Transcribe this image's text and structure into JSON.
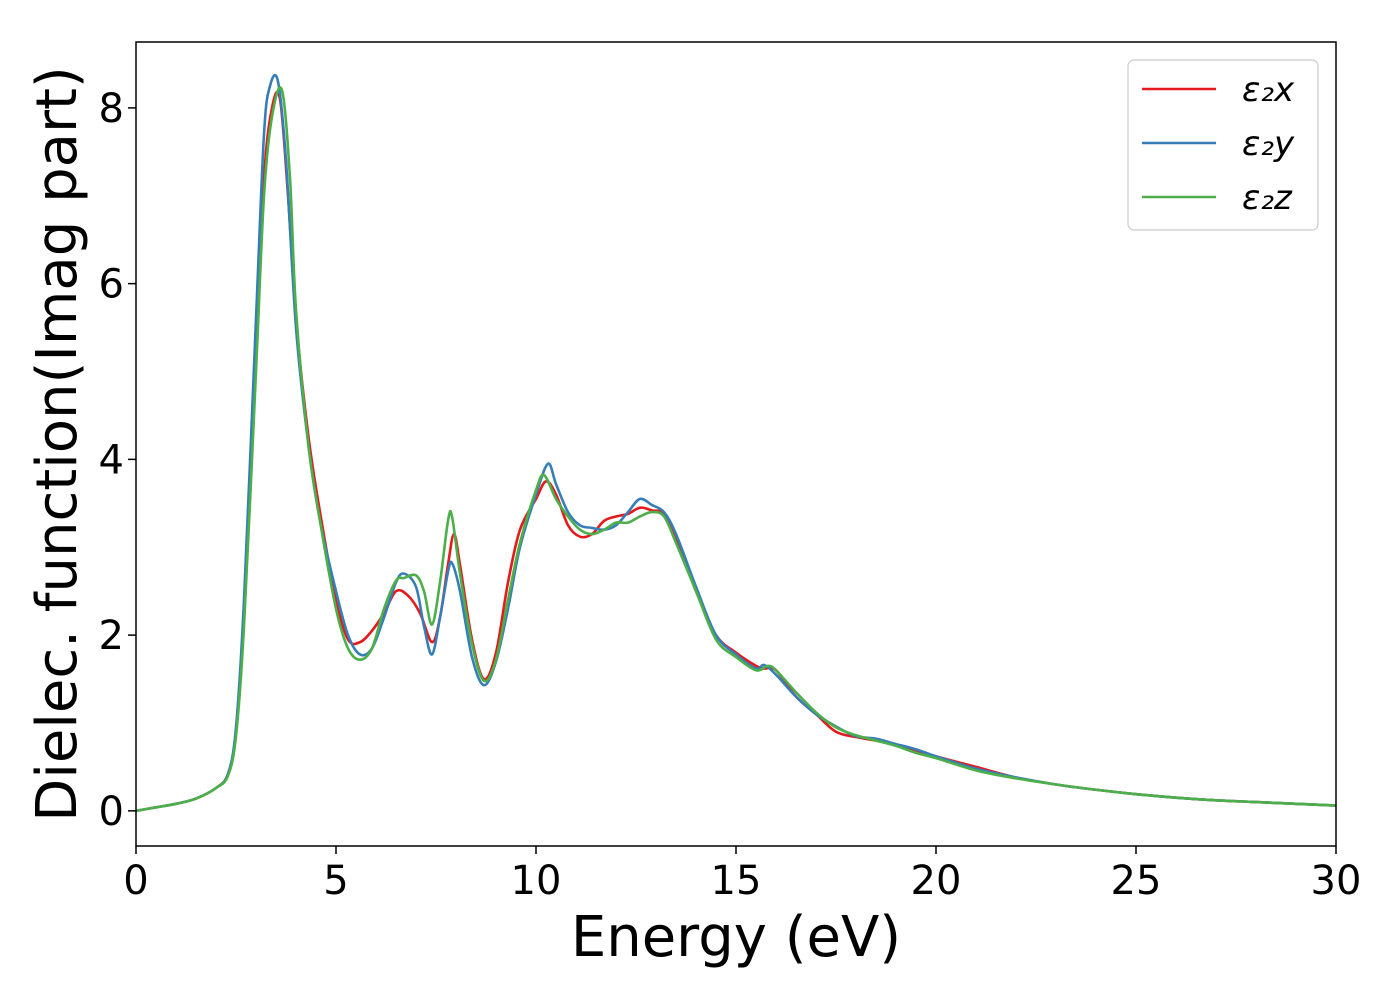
{
  "chart_data": {
    "type": "line",
    "title": "",
    "xlabel": "Energy (eV)",
    "ylabel": "Dielec. function(Imag part)",
    "xlim": [
      0,
      30
    ],
    "ylim": [
      -0.4,
      8.75
    ],
    "xticks": [
      0,
      5,
      10,
      15,
      20,
      25,
      30
    ],
    "yticks": [
      0,
      2,
      4,
      6,
      8
    ],
    "grid": false,
    "legend_position": "top-right",
    "series": [
      {
        "name": "ε₂x",
        "color": "#e41a1c",
        "x": [
          0,
          0.5,
          1,
          1.5,
          2,
          2.3,
          2.5,
          2.7,
          3,
          3.2,
          3.4,
          3.6,
          3.8,
          4,
          4.3,
          4.6,
          5,
          5.3,
          5.6,
          5.9,
          6.2,
          6.5,
          6.8,
          7.1,
          7.4,
          7.6,
          7.8,
          7.95,
          8.1,
          8.4,
          8.7,
          9,
          9.3,
          9.6,
          10,
          10.25,
          10.5,
          10.8,
          11.1,
          11.4,
          11.7,
          12,
          12.3,
          12.6,
          12.9,
          13.2,
          13.5,
          14,
          14.5,
          15,
          15.5,
          15.7,
          16,
          16.5,
          17,
          17.5,
          18,
          18.5,
          19,
          19.5,
          20,
          21,
          22,
          23,
          24,
          25,
          26,
          27,
          28,
          29,
          30
        ],
        "values": [
          0.0,
          0.04,
          0.08,
          0.14,
          0.26,
          0.42,
          0.9,
          2.2,
          5.2,
          7.2,
          8.0,
          8.1,
          7.0,
          5.6,
          4.3,
          3.4,
          2.4,
          1.95,
          1.92,
          2.05,
          2.25,
          2.5,
          2.45,
          2.25,
          1.92,
          2.2,
          2.8,
          3.15,
          2.8,
          1.95,
          1.5,
          1.8,
          2.6,
          3.2,
          3.55,
          3.75,
          3.6,
          3.25,
          3.12,
          3.15,
          3.3,
          3.35,
          3.38,
          3.45,
          3.42,
          3.38,
          3.1,
          2.5,
          2.0,
          1.8,
          1.65,
          1.62,
          1.6,
          1.3,
          1.1,
          0.9,
          0.84,
          0.8,
          0.75,
          0.68,
          0.62,
          0.5,
          0.38,
          0.3,
          0.24,
          0.19,
          0.15,
          0.12,
          0.1,
          0.08,
          0.06
        ]
      },
      {
        "name": "ε₂y",
        "color": "#377eb8",
        "x": [
          0,
          0.5,
          1,
          1.5,
          2,
          2.3,
          2.5,
          2.7,
          3,
          3.2,
          3.35,
          3.55,
          3.75,
          4,
          4.3,
          4.6,
          5,
          5.3,
          5.6,
          5.9,
          6.2,
          6.5,
          6.7,
          7,
          7.2,
          7.4,
          7.6,
          7.8,
          7.9,
          8.1,
          8.4,
          8.7,
          9,
          9.3,
          9.6,
          10,
          10.3,
          10.5,
          10.8,
          11.1,
          11.4,
          11.7,
          12,
          12.3,
          12.6,
          12.9,
          13.2,
          13.5,
          14,
          14.5,
          15,
          15.5,
          15.7,
          16,
          16.5,
          17,
          17.5,
          18,
          18.5,
          19,
          19.5,
          20,
          21,
          22,
          23,
          24,
          25,
          26,
          27,
          28,
          29,
          30
        ],
        "values": [
          0.0,
          0.04,
          0.08,
          0.14,
          0.26,
          0.42,
          0.95,
          2.4,
          5.6,
          7.7,
          8.25,
          8.3,
          7.4,
          5.5,
          4.2,
          3.3,
          2.5,
          2.0,
          1.78,
          1.85,
          2.2,
          2.6,
          2.7,
          2.55,
          2.1,
          1.78,
          2.2,
          2.72,
          2.82,
          2.5,
          1.75,
          1.43,
          1.7,
          2.3,
          3.0,
          3.6,
          3.95,
          3.72,
          3.4,
          3.25,
          3.22,
          3.2,
          3.25,
          3.4,
          3.55,
          3.48,
          3.4,
          3.15,
          2.55,
          2.0,
          1.78,
          1.62,
          1.66,
          1.55,
          1.3,
          1.1,
          0.96,
          0.85,
          0.82,
          0.76,
          0.7,
          0.62,
          0.48,
          0.38,
          0.3,
          0.24,
          0.19,
          0.15,
          0.12,
          0.1,
          0.08,
          0.06
        ]
      },
      {
        "name": "ε₂z",
        "color": "#4daf4a",
        "x": [
          0,
          0.5,
          1,
          1.5,
          2,
          2.3,
          2.5,
          2.7,
          3,
          3.2,
          3.4,
          3.65,
          3.85,
          4,
          4.3,
          4.6,
          5,
          5.3,
          5.6,
          5.9,
          6.2,
          6.5,
          6.7,
          7,
          7.2,
          7.4,
          7.6,
          7.8,
          7.9,
          8.1,
          8.4,
          8.7,
          9,
          9.3,
          9.6,
          10,
          10.2,
          10.5,
          10.8,
          11.1,
          11.4,
          11.7,
          12,
          12.3,
          12.6,
          12.9,
          13.2,
          13.5,
          14,
          14.5,
          15,
          15.5,
          15.8,
          16,
          16.5,
          17,
          17.5,
          18,
          18.5,
          19,
          19.5,
          20,
          21,
          22,
          23,
          24,
          25,
          26,
          27,
          28,
          29,
          30
        ],
        "values": [
          0.0,
          0.04,
          0.08,
          0.14,
          0.26,
          0.4,
          0.85,
          2.1,
          5.0,
          7.0,
          7.9,
          8.2,
          7.2,
          5.7,
          4.2,
          3.3,
          2.3,
          1.85,
          1.72,
          1.85,
          2.3,
          2.62,
          2.65,
          2.68,
          2.5,
          2.12,
          2.6,
          3.3,
          3.35,
          2.7,
          1.9,
          1.48,
          1.72,
          2.4,
          3.05,
          3.65,
          3.82,
          3.55,
          3.35,
          3.2,
          3.15,
          3.2,
          3.28,
          3.28,
          3.35,
          3.4,
          3.35,
          3.05,
          2.5,
          1.95,
          1.75,
          1.6,
          1.65,
          1.6,
          1.35,
          1.12,
          0.95,
          0.86,
          0.8,
          0.74,
          0.66,
          0.6,
          0.46,
          0.37,
          0.3,
          0.24,
          0.19,
          0.15,
          0.12,
          0.1,
          0.08,
          0.06
        ]
      }
    ]
  }
}
